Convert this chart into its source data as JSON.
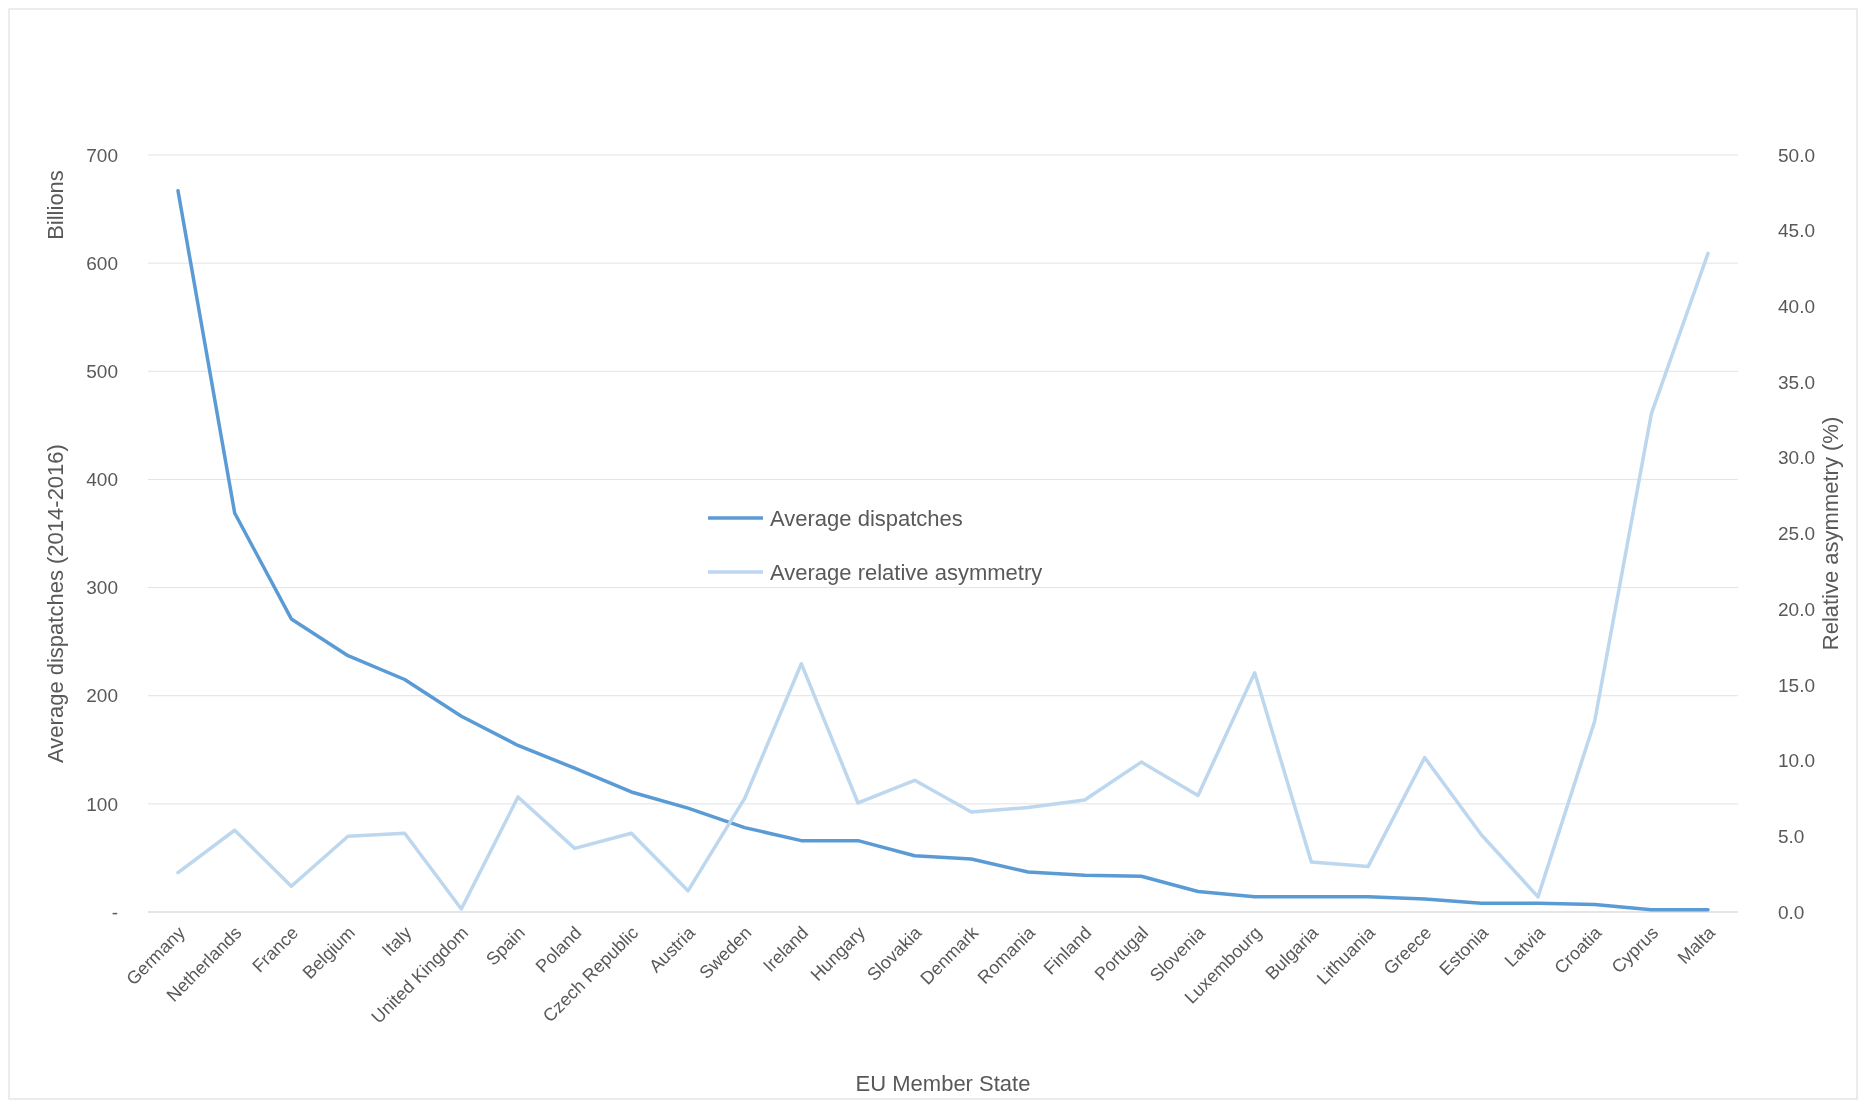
{
  "chart_data": {
    "type": "line",
    "xlabel": "EU Member State",
    "ylabel": "Average dispatches (2014-2016)",
    "y2label": "Relative asymmetry (%)",
    "annotations": [
      "Billions"
    ],
    "categories": [
      "Germany",
      "Netherlands",
      "France",
      "Belgium",
      "Italy",
      "United Kingdom",
      "Spain",
      "Poland",
      "Czech Republic",
      "Austria",
      "Sweden",
      "Ireland",
      "Hungary",
      "Slovakia",
      "Denmark",
      "Romania",
      "Finland",
      "Portugal",
      "Slovenia",
      "Luxembourg",
      "Bulgaria",
      "Lithuania",
      "Greece",
      "Estonia",
      "Latvia",
      "Croatia",
      "Cyprus",
      "Malta"
    ],
    "series": [
      {
        "name": "Average dispatches",
        "color": "#5b9bd5",
        "values": [
          667,
          369,
          271,
          237,
          215,
          181,
          154,
          133,
          111,
          96,
          78,
          66,
          66,
          52,
          49,
          37,
          34,
          33,
          19,
          14,
          14,
          14,
          12,
          8,
          8,
          7,
          2,
          2
        ]
      },
      {
        "name": "Average relative asymmetry",
        "color": "#bdd7ee",
        "axis": "y2",
        "values": [
          2.6,
          5.4,
          1.7,
          5.0,
          5.2,
          0.2,
          7.6,
          4.2,
          5.2,
          1.4,
          7.5,
          16.4,
          7.2,
          8.7,
          6.6,
          6.9,
          7.4,
          9.9,
          7.7,
          15.8,
          3.3,
          3.0,
          10.2,
          5.1,
          1.0,
          12.6,
          32.9,
          43.5
        ]
      }
    ],
    "ylim": [
      0,
      700
    ],
    "yticks": [
      {
        "value": 0,
        "label": "-"
      },
      100,
      200,
      300,
      400,
      500,
      600,
      700
    ],
    "y2lim": [
      0,
      50
    ],
    "y2ticks": [
      {
        "value": 0,
        "label": "0.0"
      },
      {
        "value": 5,
        "label": "5.0"
      },
      {
        "value": 10,
        "label": "10.0"
      },
      {
        "value": 15,
        "label": "15.0"
      },
      {
        "value": 20,
        "label": "20.0"
      },
      {
        "value": 25,
        "label": "25.0"
      },
      {
        "value": 30,
        "label": "30.0"
      },
      {
        "value": 35,
        "label": "35.0"
      },
      {
        "value": 40,
        "label": "40.0"
      },
      {
        "value": 45,
        "label": "45.0"
      },
      {
        "value": 50,
        "label": "50.0"
      }
    ],
    "grid": "y",
    "legend": "center",
    "marker": "none",
    "line_style": "solid"
  }
}
